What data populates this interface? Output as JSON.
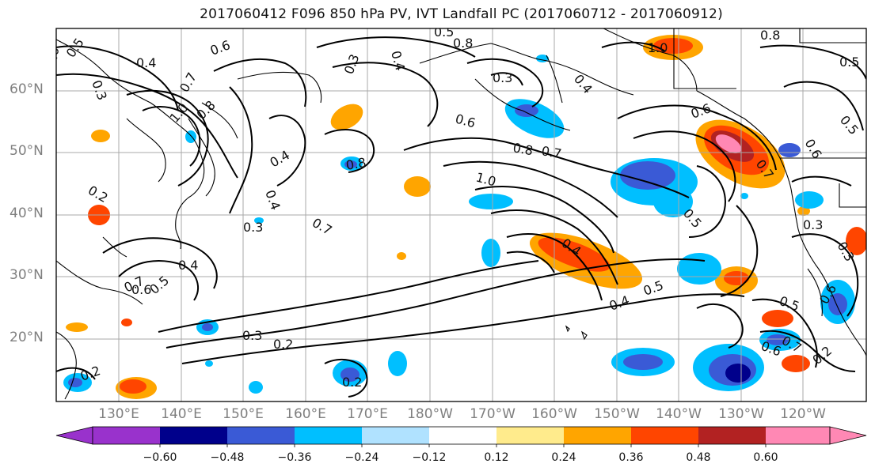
{
  "title": "2017060412 F096 850 hPa PV, IVT Landfall PC (2017060712 - 2017060912)",
  "map": {
    "lon_range": [
      "120°E",
      "120°W"
    ],
    "lat_range": [
      "10°N",
      "70°N"
    ],
    "gridlines": true,
    "lat_labels": [
      "60°N",
      "50°N",
      "40°N",
      "30°N",
      "20°N"
    ],
    "lon_labels": [
      "130°E",
      "140°E",
      "150°E",
      "160°E",
      "170°E",
      "180°W",
      "170°W",
      "160°W",
      "150°W",
      "140°W",
      "130°W",
      "120°W"
    ],
    "contour_labels": [
      "0.5",
      "0.4",
      "0.6",
      "0.7",
      "0.3",
      "0.8",
      "0.6",
      "0.4",
      "0.5",
      "1.0",
      "0.8",
      "0.3",
      "0.6",
      "0.7",
      "0.8",
      "1.0",
      "0.4",
      "0.7",
      "0.5",
      "0.2",
      "0.3",
      "0.4",
      "0.7",
      "0.4",
      "0.3",
      "0.6",
      "0.5",
      "0.4",
      "0.5",
      "0.4",
      "0.3",
      "0.2",
      "0.2",
      "0.2",
      "0.5",
      "0.7",
      "0.6",
      "0.3",
      "0.4",
      "0.3",
      "0.5",
      "0.2",
      "0.8",
      "1.0",
      "0.8",
      "0.5",
      "0.7",
      "0.6",
      "0.6",
      "0.6"
    ]
  },
  "colorbar": {
    "colors": [
      "#9932cc",
      "#00008b",
      "#3a5ad6",
      "#00bfff",
      "#b0e2ff",
      "#ffffff",
      "#ffeb8c",
      "#ffa500",
      "#ff4500",
      "#b22222",
      "#ff88b4"
    ],
    "tick_labels": [
      "−0.60",
      "−0.48",
      "−0.36",
      "−0.24",
      "−0.12",
      "0.12",
      "0.24",
      "0.36",
      "0.48",
      "0.60"
    ]
  }
}
